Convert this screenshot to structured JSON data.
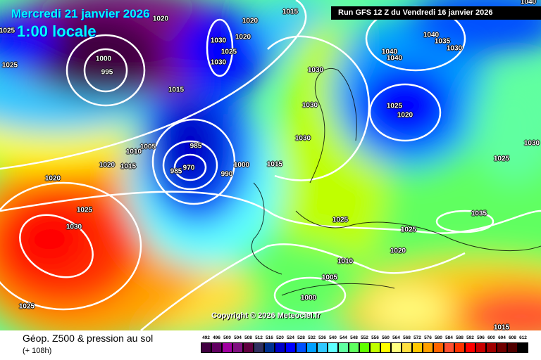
{
  "header": {
    "date": "Mercredi 21 janvier 2026",
    "time": "1:00 locale",
    "run": "Run GFS 12 Z du Vendredi 16 janvier 2026"
  },
  "copyright": "Copyright © 2026 Meteociel.fr",
  "footer": {
    "title": "Géop. Z500 & pression au sol",
    "lead": "(+ 108h)"
  },
  "pressure_labels": [
    "1020",
    "1025",
    "1015",
    "1020",
    "1030",
    "1020",
    "1025",
    "1030",
    "1000",
    "995",
    "1015",
    "1010",
    "1005",
    "1020",
    "1015",
    "985",
    "970",
    "985",
    "990",
    "1000",
    "1015",
    "1020",
    "1025",
    "1030",
    "1025",
    "1030",
    "1030",
    "1030",
    "1025",
    "1025",
    "1020",
    "1010",
    "1005",
    "1000",
    "1040",
    "1035",
    "1030",
    "1040",
    "1040",
    "1025",
    "1020",
    "1025",
    "1030",
    "1035",
    "1015",
    "1025",
    "1040"
  ],
  "legend": {
    "unit_values": [
      "492",
      "496",
      "500",
      "504",
      "508",
      "512",
      "516",
      "520",
      "524",
      "528",
      "532",
      "536",
      "540",
      "544",
      "548",
      "552",
      "556",
      "560",
      "564",
      "568",
      "572",
      "576",
      "580",
      "584",
      "588",
      "592",
      "596",
      "600",
      "604",
      "608",
      "612"
    ],
    "colors": [
      "#400040",
      "#600060",
      "#a000a0",
      "#801080",
      "#600040",
      "#303060",
      "#003090",
      "#0000c8",
      "#0000ff",
      "#0050ff",
      "#00a0ff",
      "#30c8ff",
      "#60ffff",
      "#60ffa0",
      "#60ff60",
      "#60ff00",
      "#c0ff00",
      "#ffff00",
      "#ffff80",
      "#ffe040",
      "#ffc800",
      "#ffa000",
      "#ff6400",
      "#ff5030",
      "#ff3200",
      "#ff0000",
      "#c80000",
      "#a00000",
      "#700000",
      "#500000",
      "#000000"
    ]
  }
}
